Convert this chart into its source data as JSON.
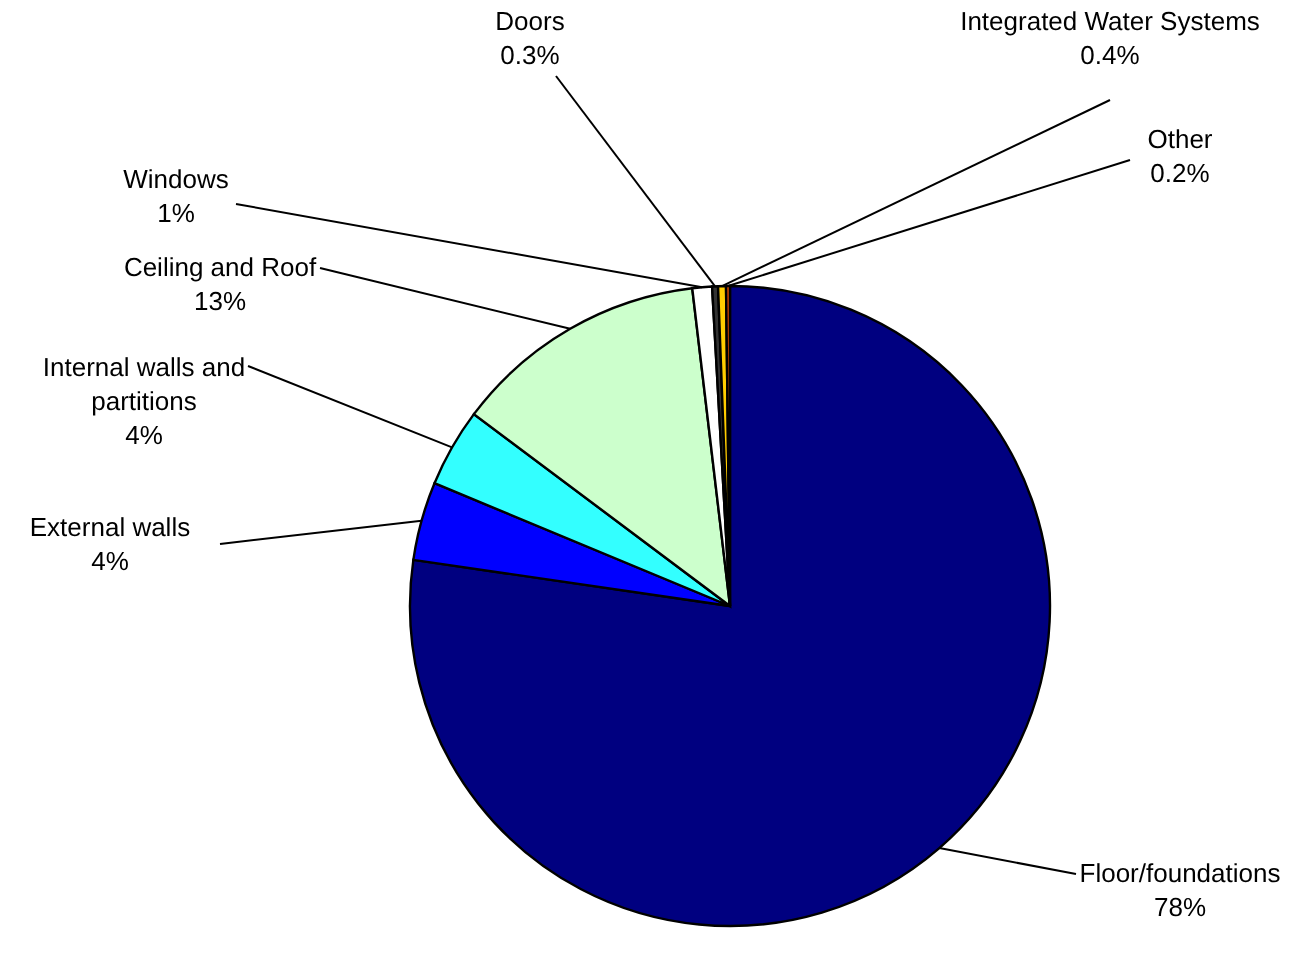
{
  "chart_data": {
    "type": "pie",
    "categories": [
      "Floor/foundations",
      "External walls",
      "Internal walls and partitions",
      "Ceiling and Roof",
      "Windows",
      "Doors",
      "Integrated Water Systems",
      "Other"
    ],
    "values": [
      78,
      4,
      4,
      13,
      1,
      0.3,
      0.4,
      0.2
    ],
    "value_labels": [
      "78%",
      "4%",
      "4%",
      "13%",
      "1%",
      "0.3%",
      "0.4%",
      "0.2%"
    ],
    "colors": [
      "#000080",
      "#0000ff",
      "#33ffff",
      "#ccffcc",
      "#ffffff",
      "#333333",
      "#ffcc00",
      "#cc4400"
    ]
  }
}
